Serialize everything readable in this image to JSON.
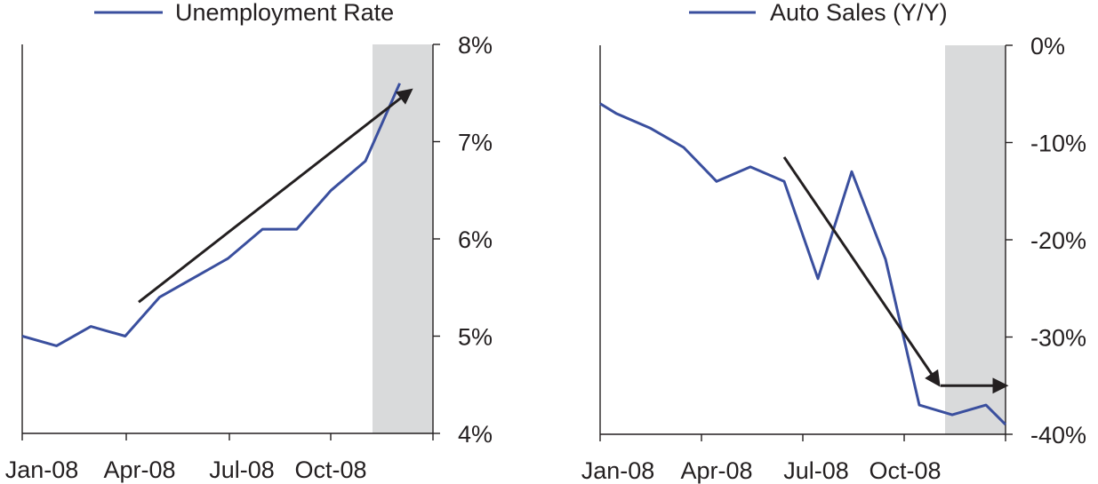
{
  "chart_data": [
    {
      "type": "line",
      "series": [
        {
          "name": "Unemployment Rate",
          "x": [
            "Jan-08",
            "Feb-08",
            "Mar-08",
            "Apr-08",
            "May-08",
            "Jun-08",
            "Jul-08",
            "Aug-08",
            "Sep-08",
            "Oct-08",
            "Nov-08",
            "Dec-08"
          ],
          "values": [
            5.0,
            4.9,
            5.1,
            5.0,
            5.4,
            5.6,
            5.8,
            6.1,
            6.1,
            6.5,
            6.8,
            7.6
          ]
        }
      ],
      "x_tick_labels": [
        "Jan-08",
        "Apr-08",
        "Jul-08",
        "Oct-08"
      ],
      "y_tick_labels": [
        "8%",
        "7%",
        "6%",
        "5%",
        "4%"
      ],
      "ylim": [
        4,
        8
      ],
      "y_axis_side": "right",
      "shaded_region": [
        "Nov-08",
        "Dec-08"
      ],
      "trend_arrow": {
        "from": [
          "Apr-08",
          5.35
        ],
        "to": [
          "Dec-08",
          7.5
        ]
      },
      "legend": "top-center",
      "grid": false,
      "colors": {
        "series": "#3a4f9e",
        "shade": "#d9dadb",
        "arrow": "#231f20"
      }
    },
    {
      "type": "line",
      "series": [
        {
          "name": "Auto Sales (Y/Y)",
          "x": [
            "Jan-08",
            "Jan-08b",
            "Feb-08",
            "Mar-08",
            "Apr-08",
            "May-08",
            "Jun-08",
            "Jul-08",
            "Aug-08",
            "Sep-08",
            "Oct-08",
            "Nov-08",
            "Dec-08",
            "Dec-08b"
          ],
          "values": [
            -6,
            -7,
            -8.5,
            -10.5,
            -14,
            -12.5,
            -14,
            -24,
            -13,
            -22,
            -37,
            -38,
            -37,
            -39
          ]
        }
      ],
      "x_tick_labels": [
        "Jan-08",
        "Apr-08",
        "Jul-08",
        "Oct-08"
      ],
      "y_tick_labels": [
        "0%",
        "-10%",
        "-20%",
        "-30%",
        "-40%"
      ],
      "ylim": [
        -40,
        0
      ],
      "y_axis_side": "right",
      "shaded_region": [
        "Nov-08",
        "Dec-08"
      ],
      "trend_arrows": [
        {
          "from": [
            "Jun-08",
            -11.5
          ],
          "to": [
            "Oct-08",
            -34.5
          ]
        },
        {
          "from": [
            "Nov-08",
            -35
          ],
          "to": [
            "Dec-08",
            -35
          ]
        }
      ],
      "legend": "top-center",
      "grid": false,
      "colors": {
        "series": "#3a4f9e",
        "shade": "#d9dadb",
        "arrow": "#231f20"
      }
    }
  ]
}
